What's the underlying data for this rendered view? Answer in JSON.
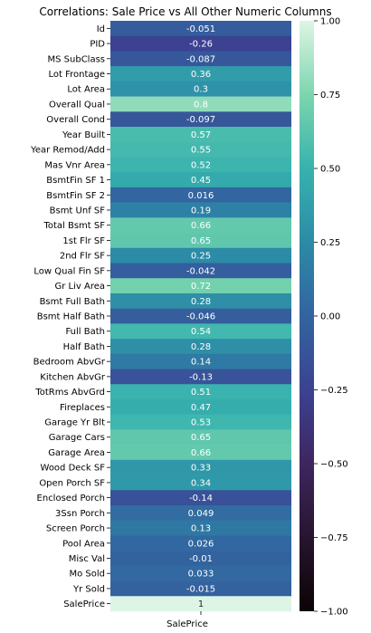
{
  "chart_data": {
    "type": "heatmap",
    "title": "Correlations: Sale Price vs All Other Numeric Columns",
    "column": "SalePrice",
    "rows": [
      "Id",
      "PID",
      "MS SubClass",
      "Lot Frontage",
      "Lot Area",
      "Overall Qual",
      "Overall Cond",
      "Year Built",
      "Year Remod/Add",
      "Mas Vnr Area",
      "BsmtFin SF 1",
      "BsmtFin SF 2",
      "Bsmt Unf SF",
      "Total Bsmt SF",
      "1st Flr SF",
      "2nd Flr SF",
      "Low Qual Fin SF",
      "Gr Liv Area",
      "Bsmt Full Bath",
      "Bsmt Half Bath",
      "Full Bath",
      "Half Bath",
      "Bedroom AbvGr",
      "Kitchen AbvGr",
      "TotRms AbvGrd",
      "Fireplaces",
      "Garage Yr Blt",
      "Garage Cars",
      "Garage Area",
      "Wood Deck SF",
      "Open Porch SF",
      "Enclosed Porch",
      "3Ssn Porch",
      "Screen Porch",
      "Pool Area",
      "Misc Val",
      "Mo Sold",
      "Yr Sold",
      "SalePrice"
    ],
    "values": [
      -0.051,
      -0.26,
      -0.087,
      0.36,
      0.3,
      0.8,
      -0.097,
      0.57,
      0.55,
      0.52,
      0.45,
      0.016,
      0.19,
      0.66,
      0.65,
      0.25,
      -0.042,
      0.72,
      0.28,
      -0.046,
      0.54,
      0.28,
      0.14,
      -0.13,
      0.51,
      0.47,
      0.53,
      0.65,
      0.66,
      0.33,
      0.34,
      -0.14,
      0.049,
      0.13,
      0.026,
      -0.01,
      0.033,
      -0.015,
      1
    ],
    "value_labels": [
      "-0.051",
      "-0.26",
      "-0.087",
      "0.36",
      "0.3",
      "0.8",
      "-0.097",
      "0.57",
      "0.55",
      "0.52",
      "0.45",
      "0.016",
      "0.19",
      "0.66",
      "0.65",
      "0.25",
      "-0.042",
      "0.72",
      "0.28",
      "-0.046",
      "0.54",
      "0.28",
      "0.14",
      "-0.13",
      "0.51",
      "0.47",
      "0.53",
      "0.65",
      "0.66",
      "0.33",
      "0.34",
      "-0.14",
      "0.049",
      "0.13",
      "0.026",
      "-0.01",
      "0.033",
      "-0.015",
      "1"
    ],
    "vmin": -1,
    "vmax": 1,
    "colorbar_ticks": [
      1.0,
      0.75,
      0.5,
      0.25,
      0.0,
      -0.25,
      -0.5,
      -0.75,
      -1.0
    ],
    "colorbar_tick_labels": [
      "1.00",
      "0.75",
      "0.50",
      "0.25",
      "0.00",
      "−0.25",
      "−0.50",
      "−0.75",
      "−1.00"
    ],
    "colormap": "mako",
    "xlabel": "",
    "ylabel": ""
  }
}
